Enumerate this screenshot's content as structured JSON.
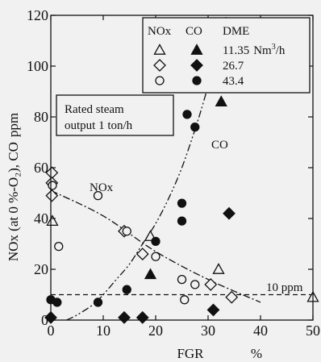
{
  "chart_data": {
    "type": "scatter",
    "xlabel": "FGR",
    "xunit": "%",
    "ylabel": "NOx (at 0 %-O₂), CO",
    "yunit": "ppm",
    "xlim": [
      0,
      50
    ],
    "ylim": [
      0,
      120
    ],
    "xticks": [
      0,
      10,
      20,
      30,
      40,
      50
    ],
    "yticks": [
      0,
      20,
      40,
      60,
      80,
      100,
      120
    ],
    "grid": false,
    "legend": {
      "placement": "top-right",
      "header": {
        "nox": "NOx",
        "co": "CO",
        "dme": "DME"
      },
      "rows": [
        {
          "label": "11.35",
          "unit_main": "Nm",
          "unit_sup": "3",
          "unit_tail": "/h",
          "nox_marker": "open-triangle",
          "co_marker": "filled-triangle"
        },
        {
          "label": "26.7",
          "nox_marker": "open-diamond",
          "co_marker": "filled-diamond"
        },
        {
          "label": "43.4",
          "nox_marker": "open-circle",
          "co_marker": "filled-circle"
        }
      ]
    },
    "annotations": {
      "condition_line1": "Rated steam",
      "condition_line2": "output 1 ton/h",
      "nox_curve_label": "NOx",
      "co_curve_label": "CO",
      "reference_label": "10 ppm"
    },
    "reference_line": {
      "y": 10
    },
    "series": [
      {
        "name": "NOx 11.35",
        "marker": "open-triangle",
        "points": [
          [
            0.3,
            39
          ],
          [
            19,
            33
          ],
          [
            32,
            20
          ],
          [
            50,
            9
          ]
        ]
      },
      {
        "name": "NOx 26.7",
        "marker": "open-diamond",
        "points": [
          [
            0.2,
            58
          ],
          [
            0.2,
            54
          ],
          [
            0.2,
            49
          ],
          [
            14,
            35
          ],
          [
            17.5,
            26
          ],
          [
            30.5,
            14
          ],
          [
            34.5,
            9
          ]
        ]
      },
      {
        "name": "NOx 43.4",
        "marker": "open-circle",
        "points": [
          [
            0.3,
            53
          ],
          [
            1.5,
            29
          ],
          [
            9,
            49
          ],
          [
            14.5,
            35
          ],
          [
            20,
            25
          ],
          [
            25,
            16
          ],
          [
            25.5,
            8
          ],
          [
            27.5,
            14
          ]
        ]
      },
      {
        "name": "CO 11.35",
        "marker": "filled-triangle",
        "points": [
          [
            19,
            18
          ],
          [
            32.5,
            86
          ]
        ]
      },
      {
        "name": "CO 26.7",
        "marker": "filled-diamond",
        "points": [
          [
            0,
            1
          ],
          [
            14,
            1
          ],
          [
            17.5,
            1
          ],
          [
            31,
            4
          ],
          [
            34,
            42
          ]
        ]
      },
      {
        "name": "CO 43.4",
        "marker": "filled-circle",
        "points": [
          [
            0,
            8
          ],
          [
            1.2,
            7
          ],
          [
            9,
            7
          ],
          [
            14.5,
            12
          ],
          [
            20,
            31
          ],
          [
            25,
            46
          ],
          [
            25,
            39
          ],
          [
            26,
            81
          ],
          [
            27.5,
            76
          ]
        ]
      }
    ],
    "fits": {
      "nox": {
        "style": "dash-dot",
        "points": [
          [
            0,
            51
          ],
          [
            10,
            41
          ],
          [
            20,
            27
          ],
          [
            30,
            16
          ],
          [
            40,
            7
          ]
        ]
      },
      "co": {
        "style": "dash-dot-dot",
        "points": [
          [
            3,
            0
          ],
          [
            5,
            2
          ],
          [
            8,
            6
          ],
          [
            10,
            10
          ],
          [
            12.5,
            16
          ],
          [
            15,
            22
          ],
          [
            17.5,
            30
          ],
          [
            20,
            38
          ],
          [
            22.5,
            48
          ],
          [
            25,
            60
          ],
          [
            27.5,
            75
          ],
          [
            29,
            85
          ],
          [
            30.5,
            96
          ],
          [
            32,
            108
          ],
          [
            33.5,
            120
          ]
        ]
      }
    },
    "colors": {
      "ink": "#111111",
      "background": "#f1f1f1"
    }
  }
}
